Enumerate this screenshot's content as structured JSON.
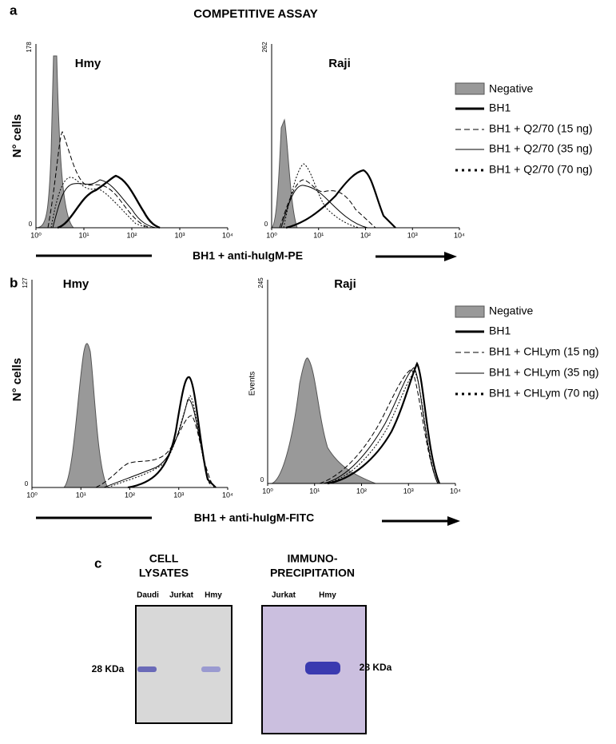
{
  "panels": [
    {
      "label": "a",
      "title": "COMPETITIVE ASSAY",
      "y_label": "N° cells",
      "x_label": "BH1 + anti-huIgM-PE",
      "plots": [
        {
          "title": "Hmy",
          "y_max_label": "178",
          "y_min_label": "0",
          "x_tick_labels": [
            "10⁰",
            "10¹",
            "10²",
            "10³",
            "10⁴"
          ]
        },
        {
          "title": "Raji",
          "y_max_label": "262",
          "y_min_label": "0",
          "x_tick_labels": [
            "10⁰",
            "10¹",
            "10²",
            "10³",
            "10⁴"
          ]
        }
      ],
      "legend": [
        "Negative",
        "BH1",
        "BH1 + Q2/70 (15 ng)",
        "BH1 + Q2/70 (35 ng)",
        "BH1 + Q2/70 (70 ng)"
      ]
    },
    {
      "label": "b",
      "y_label": "N° cells",
      "x_label": "BH1 + anti-huIgM-FITC",
      "plots": [
        {
          "title": "Hmy",
          "y_max_label": "127",
          "y_min_label": "0",
          "x_tick_labels": [
            "10⁰",
            "10¹",
            "10²",
            "10³",
            "10⁴"
          ]
        },
        {
          "title": "Raji",
          "y_max_label": "245",
          "y_min_label": "0",
          "y_axis_label": "Events",
          "x_tick_labels": [
            "10⁰",
            "10¹",
            "10²",
            "10³",
            "10⁴"
          ]
        }
      ],
      "legend": [
        "Negative",
        "BH1",
        "BH1 + CHLym (15 ng)",
        "BH1 + CHLym (35 ng)",
        "BH1 + CHLym (70 ng)"
      ]
    },
    {
      "label": "c",
      "blots": [
        {
          "title_lines": [
            "CELL",
            "LYSATES"
          ],
          "lanes": [
            "Daudi",
            "Jurkat",
            "Hmy"
          ],
          "marker": "28 KDa"
        },
        {
          "title_lines": [
            "IMMUNO-",
            "PRECIPITATION"
          ],
          "lanes": [
            "Jurkat",
            "Hmy"
          ],
          "marker": "28 KDa"
        }
      ]
    }
  ]
}
